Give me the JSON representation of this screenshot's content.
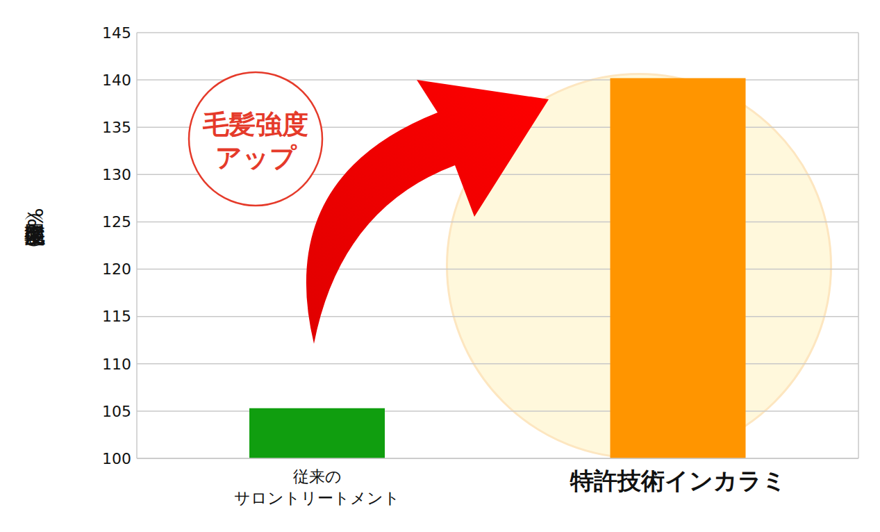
{
  "chart_data": {
    "type": "bar",
    "categories": [
      "従来の\nサロントリートメント",
      "特許技術インカラミ"
    ],
    "values": [
      105.3,
      140.2
    ],
    "colors": [
      "#109e0f",
      "#ff9500"
    ],
    "y_label": "毛髪強度回復率（%）",
    "annotations": [
      "毛髪強度\nアップ"
    ],
    "ylim": [
      100,
      145
    ],
    "yticks": [
      100,
      105,
      110,
      115,
      120,
      125,
      130,
      135,
      140,
      145
    ],
    "grid": true
  }
}
